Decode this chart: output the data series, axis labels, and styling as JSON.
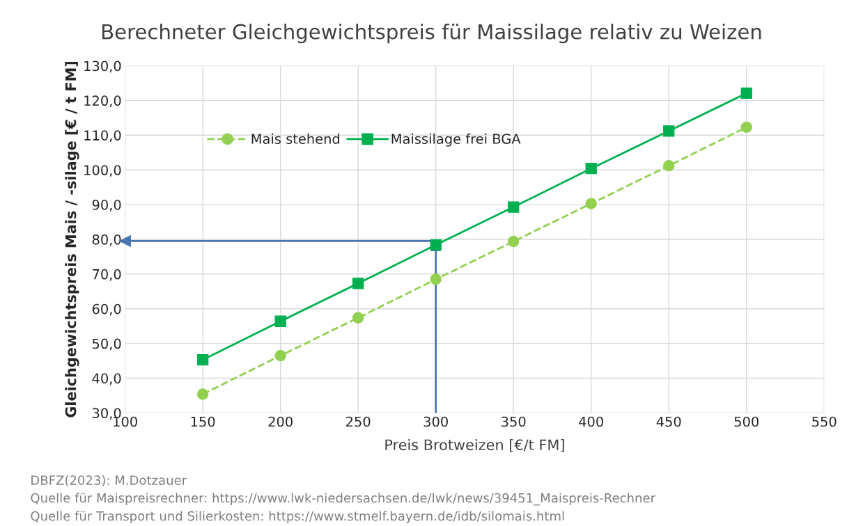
{
  "chart_data": {
    "type": "line",
    "title": "Berechneter Gleichgewichtspreis für Maissilage relativ zu Weizen",
    "xlabel": "Preis Brotweizen [€/t FM]",
    "ylabel": "Gleichgewichtspreis Mais / -silage [€ / t FM]",
    "x": [
      150,
      200,
      250,
      300,
      350,
      400,
      450,
      500
    ],
    "series": [
      {
        "name": "Mais stehend",
        "color": "#92d050",
        "marker": "circle",
        "line_style": "dashed",
        "values": [
          35.4,
          46.5,
          57.4,
          68.5,
          79.4,
          90.3,
          101.2,
          112.3
        ]
      },
      {
        "name": "Maissilage frei BGA",
        "color": "#00b050",
        "marker": "square",
        "line_style": "solid",
        "values": [
          45.3,
          56.4,
          67.3,
          78.4,
          89.3,
          100.4,
          111.2,
          122.1
        ]
      }
    ],
    "xlim": [
      100,
      550
    ],
    "xticks": [
      100,
      150,
      200,
      250,
      300,
      350,
      400,
      450,
      500,
      550
    ],
    "ylim": [
      30,
      130
    ],
    "yticks": [
      {
        "value": 30,
        "label": "30,0"
      },
      {
        "value": 40,
        "label": "40,0"
      },
      {
        "value": 50,
        "label": "50,0"
      },
      {
        "value": 60,
        "label": "60,0"
      },
      {
        "value": 70,
        "label": "70,0"
      },
      {
        "value": 80,
        "label": "80,0"
      },
      {
        "value": 90,
        "label": "90,0"
      },
      {
        "value": 100,
        "label": "100,0"
      },
      {
        "value": 110,
        "label": "110,0"
      },
      {
        "value": 120,
        "label": "120,0"
      },
      {
        "value": 130,
        "label": "130,0"
      }
    ],
    "ref_lines": [
      {
        "axis": "x",
        "value": 300,
        "color": "#4a76b0"
      },
      {
        "axis": "y",
        "value": 79.5,
        "color": "#4a76b0"
      }
    ],
    "grid": true,
    "legend": "top left",
    "annotations": [
      "DBFZ(2023): M.Dotzauer",
      "Quelle für Maispreisrechner: https://www.lwk-niedersachsen.de/lwk/news/39451_Maispreis-Rechner",
      "Quelle für Transport und Silierkosten: https://www.stmelf.bayern.de/idb/silomais.html"
    ]
  }
}
